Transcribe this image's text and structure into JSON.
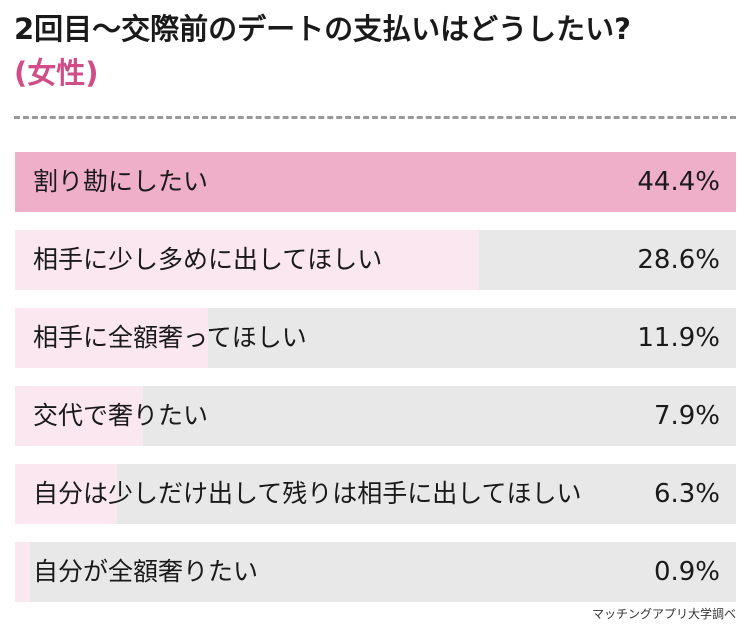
{
  "header": {
    "title": "2回目〜交際前のデートの支払いはどうしたい?",
    "subtitle": "(女性)"
  },
  "chart_data": {
    "type": "bar",
    "orientation": "horizontal",
    "title": "2回目〜交際前のデートの支払いはどうしたい?",
    "subtitle": "(女性)",
    "categories": [
      "割り勘にしたい",
      "相手に少し多めに出してほしい",
      "相手に全額奢ってほしい",
      "交代で奢りたい",
      "自分は少しだけ出して残りは相手に出してほしい",
      "自分が全額奢りたい"
    ],
    "values": [
      44.4,
      28.6,
      11.9,
      7.9,
      6.3,
      0.9
    ],
    "value_labels": [
      "44.4%",
      "28.6%",
      "11.9%",
      "7.9%",
      "6.3%",
      "0.9%"
    ],
    "unit": "%",
    "xlim": [
      0,
      44.4
    ],
    "grid": false,
    "legend": "none",
    "colors": {
      "highlight": "#efafc9",
      "fill": "#fbe7f0",
      "track": "#e8e8e8",
      "subtitle": "#d14d87"
    }
  },
  "footer": {
    "source": "マッチングアプリ大学調べ"
  }
}
